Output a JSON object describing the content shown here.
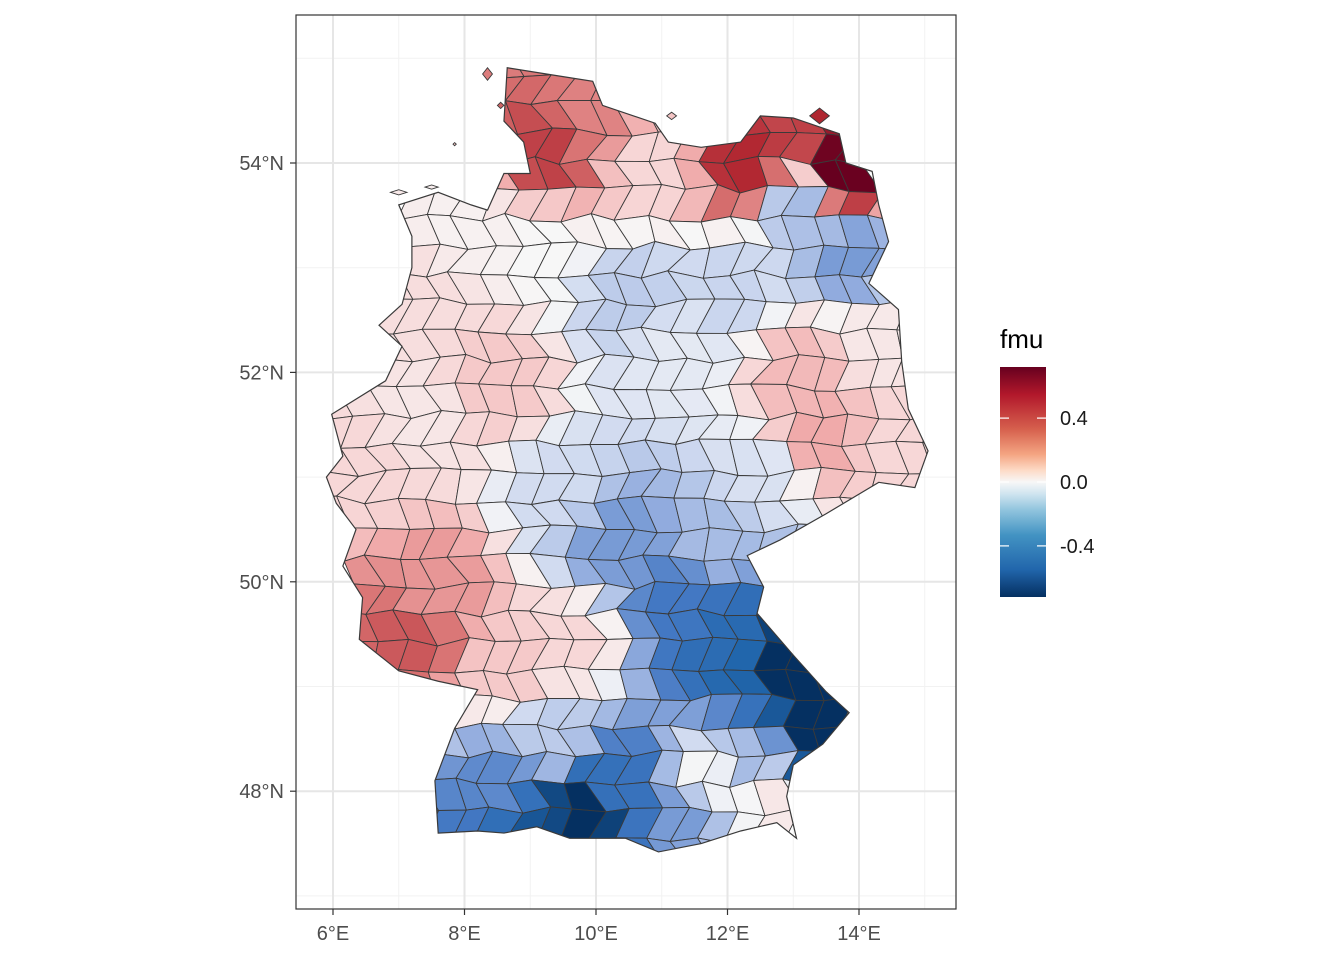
{
  "map": {
    "legend": {
      "title": "fmu",
      "ticks": [
        {
          "value": 0.4,
          "label": "0.4"
        },
        {
          "value": 0.0,
          "label": "0.0"
        },
        {
          "value": -0.4,
          "label": "-0.4"
        }
      ],
      "range": [
        -0.72,
        0.72
      ],
      "colors": {
        "low": "#053061",
        "mid": "#f7f7f7",
        "high": "#67001f"
      }
    },
    "x_axis": {
      "ticks": [
        {
          "lon": 6,
          "label": "6°E"
        },
        {
          "lon": 8,
          "label": "8°E"
        },
        {
          "lon": 10,
          "label": "10°E"
        },
        {
          "lon": 12,
          "label": "12°E"
        },
        {
          "lon": 14,
          "label": "14°E"
        }
      ]
    },
    "y_axis": {
      "ticks": [
        {
          "lat": 54,
          "label": "54°N"
        },
        {
          "lat": 52,
          "label": "52°N"
        },
        {
          "lat": 50,
          "label": "50°N"
        },
        {
          "lat": 48,
          "label": "48°N"
        }
      ]
    },
    "extent": {
      "lon": [
        5.5,
        15.5
      ],
      "lat": [
        47.0,
        55.3
      ]
    },
    "grid": true,
    "region_values": [
      {
        "lon": 13.7,
        "lat": 53.9,
        "fmu": 0.72
      },
      {
        "lon": 12.3,
        "lat": 54.0,
        "fmu": 0.55
      },
      {
        "lon": 9.3,
        "lat": 54.1,
        "fmu": 0.5
      },
      {
        "lon": 9.9,
        "lat": 54.4,
        "fmu": 0.35
      },
      {
        "lon": 7.2,
        "lat": 49.5,
        "fmu": 0.45
      },
      {
        "lon": 7.5,
        "lat": 49.9,
        "fmu": 0.3
      },
      {
        "lon": 13.4,
        "lat": 51.4,
        "fmu": 0.25
      },
      {
        "lon": 13.2,
        "lat": 52.0,
        "fmu": 0.2
      },
      {
        "lon": 8.5,
        "lat": 51.9,
        "fmu": 0.15
      },
      {
        "lon": 6.5,
        "lat": 51.1,
        "fmu": 0.1
      },
      {
        "lon": 7.3,
        "lat": 52.7,
        "fmu": 0.08
      },
      {
        "lon": 10.8,
        "lat": 54.0,
        "fmu": 0.1
      },
      {
        "lon": 14.6,
        "lat": 51.3,
        "fmu": 0.1
      },
      {
        "lon": 8.7,
        "lat": 49.2,
        "fmu": 0.15
      },
      {
        "lon": 9.6,
        "lat": 49.4,
        "fmu": 0.1
      },
      {
        "lon": 13.1,
        "lat": 53.6,
        "fmu": -0.2
      },
      {
        "lon": 13.9,
        "lat": 53.1,
        "fmu": -0.3
      },
      {
        "lon": 10.5,
        "lat": 52.7,
        "fmu": -0.15
      },
      {
        "lon": 11.2,
        "lat": 52.2,
        "fmu": -0.05
      },
      {
        "lon": 9.5,
        "lat": 50.9,
        "fmu": -0.1
      },
      {
        "lon": 10.3,
        "lat": 50.4,
        "fmu": -0.3
      },
      {
        "lon": 11.3,
        "lat": 49.8,
        "fmu": -0.4
      },
      {
        "lon": 11.9,
        "lat": 49.5,
        "fmu": -0.5
      },
      {
        "lon": 12.4,
        "lat": 49.2,
        "fmu": -0.55
      },
      {
        "lon": 12.8,
        "lat": 49.2,
        "fmu": -0.75
      },
      {
        "lon": 13.4,
        "lat": 48.5,
        "fmu": -0.78
      },
      {
        "lon": 9.8,
        "lat": 47.8,
        "fmu": -0.78
      },
      {
        "lon": 9.0,
        "lat": 47.7,
        "fmu": -0.6
      },
      {
        "lon": 10.4,
        "lat": 48.0,
        "fmu": -0.45
      },
      {
        "lon": 8.6,
        "lat": 48.0,
        "fmu": -0.35
      },
      {
        "lon": 11.3,
        "lat": 47.8,
        "fmu": -0.3
      },
      {
        "lon": 12.3,
        "lat": 48.3,
        "fmu": -0.2
      },
      {
        "lon": 12.7,
        "lat": 47.9,
        "fmu": 0.05
      },
      {
        "lon": 11.7,
        "lat": 48.1,
        "fmu": 0.0
      },
      {
        "lon": 9.3,
        "lat": 48.5,
        "fmu": -0.15
      },
      {
        "lon": 12.5,
        "lat": 51.0,
        "fmu": -0.08
      },
      {
        "lon": 11.8,
        "lat": 50.4,
        "fmu": -0.2
      },
      {
        "lon": 7.3,
        "lat": 51.6,
        "fmu": 0.05
      },
      {
        "lon": 8.0,
        "lat": 53.4,
        "fmu": 0.02
      },
      {
        "lon": 9.2,
        "lat": 53.2,
        "fmu": 0.0
      },
      {
        "lon": 12.0,
        "lat": 52.8,
        "fmu": -0.12
      },
      {
        "lon": 14.2,
        "lat": 52.3,
        "fmu": 0.05
      }
    ]
  }
}
